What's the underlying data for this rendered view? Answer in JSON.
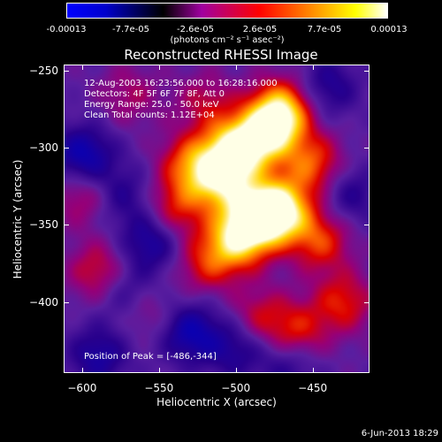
{
  "colorbar": {
    "ticks": [
      "-0.00013",
      "-7.7e-05",
      "-2.6e-05",
      "2.6e-05",
      "7.7e-05",
      "0.00013"
    ],
    "units": "(photons cm⁻² s⁻¹ asec⁻²)"
  },
  "chart_data": {
    "type": "heatmap",
    "title": "Reconstructed RHESSI Image",
    "xlabel": "Heliocentric X (arcsec)",
    "ylabel": "Heliocentric Y (arcsec)",
    "xlim": [
      -612,
      -413
    ],
    "ylim": [
      -446,
      -246
    ],
    "x_ticks": [
      -600,
      -550,
      -500,
      -450
    ],
    "y_ticks": [
      -250,
      -300,
      -350,
      -400
    ],
    "colorbar_range": [
      -0.00013,
      0.00013
    ],
    "peak": [
      -486,
      -344
    ],
    "blobs": [
      {
        "x": -480,
        "y": -290,
        "v": 0.75
      },
      {
        "x": -470,
        "y": -275,
        "v": 0.85
      },
      {
        "x": -500,
        "y": -300,
        "v": 0.9
      },
      {
        "x": -510,
        "y": -320,
        "v": 0.8
      },
      {
        "x": -486,
        "y": -344,
        "v": 1.0
      },
      {
        "x": -470,
        "y": -340,
        "v": 0.85
      },
      {
        "x": -500,
        "y": -360,
        "v": 0.75
      },
      {
        "x": -530,
        "y": -310,
        "v": 0.55
      },
      {
        "x": -540,
        "y": -340,
        "v": 0.45
      },
      {
        "x": -520,
        "y": -375,
        "v": 0.4
      },
      {
        "x": -450,
        "y": -310,
        "v": 0.55
      },
      {
        "x": -445,
        "y": -360,
        "v": 0.5
      },
      {
        "x": -430,
        "y": -400,
        "v": 0.45
      },
      {
        "x": -460,
        "y": -420,
        "v": 0.45
      },
      {
        "x": -485,
        "y": -410,
        "v": 0.35
      },
      {
        "x": -590,
        "y": -380,
        "v": 0.4
      },
      {
        "x": -560,
        "y": -405,
        "v": 0.3
      },
      {
        "x": -600,
        "y": -330,
        "v": 0.35
      },
      {
        "x": -570,
        "y": -265,
        "v": 0.25
      },
      {
        "x": -520,
        "y": -270,
        "v": 0.3
      },
      {
        "x": -600,
        "y": -305,
        "v": -0.55
      },
      {
        "x": -575,
        "y": -330,
        "v": -0.3
      },
      {
        "x": -555,
        "y": -360,
        "v": -0.45
      },
      {
        "x": -570,
        "y": -395,
        "v": -0.35
      },
      {
        "x": -530,
        "y": -420,
        "v": -0.5
      },
      {
        "x": -500,
        "y": -430,
        "v": -0.35
      },
      {
        "x": -440,
        "y": -260,
        "v": -0.35
      },
      {
        "x": -425,
        "y": -330,
        "v": -0.3
      },
      {
        "x": -590,
        "y": -435,
        "v": -0.4
      },
      {
        "x": -465,
        "y": -440,
        "v": -0.3
      }
    ]
  },
  "annotations": {
    "time_range": "12-Aug-2003 16:23:56.000 to 16:28:16.000",
    "detectors": "Detectors: 4F 5F 6F 7F 8F, Att 0",
    "energy_range": "Energy Range: 25.0 - 50.0 keV",
    "algorithm": "Clean    Total counts: 1.12E+04",
    "peak_position": "Position of Peak = [-486,-344]"
  },
  "footer": {
    "date": "6-Jun-2013 18:29"
  }
}
